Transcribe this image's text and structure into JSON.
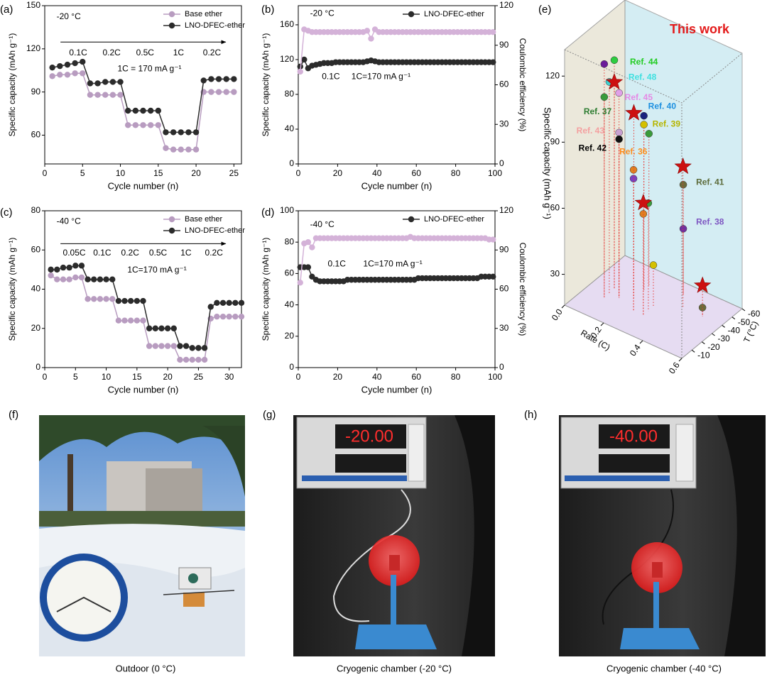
{
  "chart_data": [
    {
      "type": "line",
      "panel_label": "(a)",
      "x": [
        1,
        2,
        3,
        4,
        5,
        6,
        7,
        8,
        9,
        10,
        11,
        12,
        13,
        14,
        15,
        16,
        17,
        18,
        19,
        20,
        21,
        22,
        23,
        24,
        25
      ],
      "series": [
        {
          "name": "Base ether",
          "color": "#b89cc0",
          "values": [
            101,
            102,
            102,
            103,
            103,
            88,
            88,
            88,
            88,
            88,
            67,
            67,
            67,
            67,
            67,
            51,
            50,
            50,
            50,
            50,
            90,
            90,
            90,
            90,
            90
          ]
        },
        {
          "name": "LNO-DFEC-ether",
          "color": "#2b2b2b",
          "values": [
            107,
            108,
            109,
            110,
            111,
            96,
            96,
            97,
            97,
            97,
            77,
            77,
            77,
            77,
            77,
            62,
            62,
            62,
            62,
            62,
            98,
            99,
            99,
            99,
            99
          ]
        }
      ],
      "xlim": [
        0,
        26
      ],
      "xticks": [
        0,
        5,
        10,
        15,
        20,
        25
      ],
      "ylim": [
        40,
        150
      ],
      "yticks": [
        60,
        90,
        120,
        150
      ],
      "x_label": "Cycle number (n)",
      "y_label": "Specific capacity (mAh g⁻¹)",
      "legend": "top-right",
      "annotations": [
        "-20 °C",
        "1C = 170 mA g⁻¹"
      ],
      "rate_labels": [
        "0.1C",
        "0.2C",
        "0.5C",
        "1C",
        "0.2C"
      ]
    },
    {
      "type": "line",
      "panel_label": "(b)",
      "x": [
        1,
        3,
        5,
        7,
        9,
        11,
        13,
        15,
        17,
        19,
        21,
        23,
        25,
        27,
        29,
        31,
        33,
        35,
        37,
        39,
        41,
        43,
        45,
        47,
        49,
        51,
        53,
        55,
        57,
        59,
        61,
        63,
        65,
        67,
        69,
        71,
        73,
        75,
        77,
        79,
        81,
        83,
        85,
        87,
        89,
        91,
        93,
        95,
        97,
        99
      ],
      "series": [
        {
          "name": "LNO-DFEC-ether",
          "color": "#2b2b2b",
          "values": [
            112,
            120,
            110,
            113,
            114,
            115,
            116,
            116,
            116,
            117,
            117,
            117,
            117,
            117,
            117,
            117,
            117,
            118,
            119,
            118,
            117,
            117,
            117,
            117,
            117,
            117,
            117,
            117,
            117,
            117,
            117,
            117,
            117,
            117,
            117,
            117,
            117,
            117,
            117,
            117,
            117,
            117,
            117,
            117,
            117,
            117,
            117,
            117,
            117,
            117
          ]
        },
        {
          "color": "#d4b2d8",
          "axis": "y2",
          "values": [
            70,
            102,
            101,
            100,
            100,
            100,
            100,
            100,
            100,
            100,
            100,
            100,
            100,
            100,
            100,
            100,
            100,
            101,
            95,
            102,
            100,
            100,
            100,
            100,
            100,
            100,
            100,
            100,
            100,
            100,
            100,
            100,
            100,
            100,
            100,
            100,
            100,
            100,
            100,
            100,
            100,
            100,
            100,
            100,
            100,
            100,
            100,
            100,
            100,
            100
          ]
        }
      ],
      "xlim": [
        0,
        100
      ],
      "xticks": [
        0,
        20,
        40,
        60,
        80,
        100
      ],
      "ylim": [
        0,
        182
      ],
      "yticks": [
        0,
        40,
        80,
        120,
        160
      ],
      "y2lim": [
        0,
        120
      ],
      "y2ticks": [
        0,
        30,
        60,
        90,
        120
      ],
      "x_label": "Cycle number (n)",
      "y_label": "Specific capacity (mAh g⁻¹)",
      "y2_label": "Coulombic efficiency (%)",
      "legend": "top-right",
      "annotations": [
        "-20 °C",
        "0.1C",
        "1C=170 mA g⁻¹"
      ]
    },
    {
      "type": "line",
      "panel_label": "(c)",
      "x": [
        1,
        2,
        3,
        4,
        5,
        6,
        7,
        8,
        9,
        10,
        11,
        12,
        13,
        14,
        15,
        16,
        17,
        18,
        19,
        20,
        21,
        22,
        23,
        24,
        25,
        26,
        27,
        28,
        29,
        30,
        31,
        32
      ],
      "series": [
        {
          "name": "Base ether",
          "color": "#b89cc0",
          "values": [
            47,
            45,
            45,
            45,
            46,
            46,
            35,
            35,
            35,
            35,
            35,
            24,
            24,
            24,
            24,
            24,
            11,
            11,
            11,
            11,
            11,
            4,
            4,
            4,
            4,
            4,
            25,
            26,
            26,
            26,
            26,
            26
          ]
        },
        {
          "name": "LNO-DFEC-ether",
          "color": "#2b2b2b",
          "values": [
            50,
            50,
            51,
            51,
            52,
            52,
            45,
            45,
            45,
            45,
            45,
            34,
            34,
            34,
            34,
            34,
            20,
            20,
            20,
            20,
            20,
            11,
            11,
            10,
            10,
            10,
            31,
            33,
            33,
            33,
            33,
            33
          ]
        }
      ],
      "xlim": [
        0,
        32
      ],
      "xticks": [
        0,
        5,
        10,
        15,
        20,
        25,
        30
      ],
      "ylim": [
        0,
        80
      ],
      "yticks": [
        0,
        20,
        40,
        60,
        80
      ],
      "x_label": "Cycle number (n)",
      "y_label": "Specific capacity (mAh g⁻¹)",
      "legend": "top-right",
      "annotations": [
        "-40 °C",
        "1C=170 mA g⁻¹"
      ],
      "rate_labels": [
        "0.05C",
        "0.1C",
        "0.2C",
        "0.5C",
        "1C",
        "0.2C"
      ]
    },
    {
      "type": "line",
      "panel_label": "(d)",
      "x": [
        1,
        3,
        5,
        7,
        9,
        11,
        13,
        15,
        17,
        19,
        21,
        23,
        25,
        27,
        29,
        31,
        33,
        35,
        37,
        39,
        41,
        43,
        45,
        47,
        49,
        51,
        53,
        55,
        57,
        59,
        61,
        63,
        65,
        67,
        69,
        71,
        73,
        75,
        77,
        79,
        81,
        83,
        85,
        87,
        89,
        91,
        93,
        95,
        97,
        99
      ],
      "series": [
        {
          "name": "LNO-DFEC-ether",
          "color": "#2b2b2b",
          "values": [
            64,
            64,
            64,
            58,
            56,
            55,
            55,
            55,
            55,
            55,
            55,
            55,
            56,
            56,
            56,
            56,
            56,
            56,
            56,
            56,
            56,
            56,
            56,
            56,
            56,
            56,
            56,
            56,
            56,
            56,
            57,
            57,
            57,
            57,
            57,
            57,
            57,
            57,
            57,
            57,
            57,
            57,
            57,
            57,
            57,
            57,
            58,
            58,
            58,
            58
          ]
        },
        {
          "color": "#d4b2d8",
          "axis": "y2",
          "values": [
            65,
            95,
            96,
            92,
            99,
            99,
            99,
            99,
            99,
            99,
            99,
            99,
            99,
            99,
            99,
            99,
            99,
            99,
            99,
            99,
            99,
            99,
            99,
            99,
            99,
            99,
            99,
            99,
            100,
            99,
            99,
            99,
            99,
            99,
            99,
            99,
            99,
            99,
            99,
            99,
            99,
            99,
            99,
            99,
            99,
            99,
            99,
            99,
            98,
            98
          ]
        }
      ],
      "xlim": [
        0,
        100
      ],
      "xticks": [
        0,
        20,
        40,
        60,
        80,
        100
      ],
      "ylim": [
        0,
        100
      ],
      "yticks": [
        0,
        20,
        40,
        60,
        80,
        100
      ],
      "y2lim": [
        0,
        120
      ],
      "y2ticks": [
        0,
        30,
        60,
        90,
        120
      ],
      "x_label": "Cycle number (n)",
      "y_label": "Specific capacity (mAh g⁻¹)",
      "y2_label": "Coulombic efficiency (%)",
      "legend": "top-right",
      "annotations": [
        "-40 °C",
        "0.1C",
        "1C=170 mA g⁻¹"
      ]
    },
    {
      "type": "scatter3d",
      "panel_label": "(e)",
      "title": "This work",
      "x_label": "Rate (C)",
      "y_label": "T (°C)",
      "z_label": "Specific capacity (mAh g⁻¹)",
      "xlim": [
        0,
        0.6
      ],
      "xticks": [
        {
          "value": 0,
          "label": "0.0"
        },
        0.2,
        0.4,
        0.6
      ],
      "ylim": [
        0,
        -60
      ],
      "yticks": [
        -10,
        -20,
        -30,
        -40,
        -50,
        -60
      ],
      "zlim": [
        16,
        132
      ],
      "zticks": [
        30,
        60,
        90,
        120
      ],
      "this_work": {
        "color": "#cc1111",
        "rate": [
          0.1,
          0.2,
          0.4,
          0.3,
          0.5
        ],
        "T": [
          -30,
          -30,
          -40,
          -20,
          -40
        ],
        "capacity": [
          110,
          100,
          80,
          67,
          30
        ]
      },
      "refs": [
        {
          "color": "#6a1b9a",
          "rate": 0.1,
          "T": -20,
          "capacity": 122
        },
        {
          "label": "Ref. 44",
          "label_color": "#22cc22",
          "color": "#2ecc40",
          "rate": 0.1,
          "T": -30,
          "capacity": 120
        },
        {
          "label": "Ref. 48",
          "label_color": "#40e0e0",
          "color": "#40d0d0",
          "rate": 0.1,
          "T": -25,
          "capacity": 112
        },
        {
          "label": "Ref. 45",
          "label_color": "#e58ae5",
          "color": "#e0a0e8",
          "rate": 0.15,
          "T": -25,
          "capacity": 109
        },
        {
          "label": "Ref. 37",
          "label_color": "#2e7d32",
          "color": "#3a9a3a",
          "rate": 0.1,
          "T": -20,
          "capacity": 107
        },
        {
          "label": "Ref. 40",
          "label_color": "#1e90e0",
          "color": "#1a237e",
          "rate": 0.2,
          "T": -40,
          "capacity": 95
        },
        {
          "label": "Ref. 39",
          "label_color": "#b5b500",
          "color": "#d4c000",
          "rate": 0.2,
          "T": -40,
          "capacity": 91
        },
        {
          "label": "Ref. 43",
          "label_color": "#f4a0a0",
          "color": "#c8a0d0",
          "rate": 0.15,
          "T": -25,
          "capacity": 91
        },
        {
          "label": "Ref. 42",
          "label_color": "#000000",
          "color": "#111111",
          "rate": 0.15,
          "T": -25,
          "capacity": 88
        },
        {
          "color": "#3a9a3a",
          "rate": 0.2,
          "T": -45,
          "capacity": 85
        },
        {
          "label": "Ref. 36",
          "label_color": "#ff8c1a",
          "color": "#e08020",
          "rate": 0.25,
          "T": -20,
          "capacity": 80
        },
        {
          "color": "#7b3fc0",
          "rate": 0.25,
          "T": -20,
          "capacity": 76
        },
        {
          "label": "Ref. 41",
          "label_color": "#5c6b3a",
          "color": "#6b6b3a",
          "rate": 0.35,
          "T": -50,
          "capacity": 66
        },
        {
          "label": "Ref. 38",
          "label_color": "#7e57c2",
          "color": "#7030a0",
          "rate": 0.35,
          "T": -50,
          "capacity": 46
        },
        {
          "color": "#e08020",
          "rate": 0.3,
          "T": -20,
          "capacity": 62
        },
        {
          "color": "#3a9a3a",
          "rate": 0.3,
          "T": -25,
          "capacity": 65
        },
        {
          "color": "#d4c000",
          "rate": 0.3,
          "T": -30,
          "capacity": 35
        },
        {
          "color": "#6b6b3a",
          "rate": 0.5,
          "T": -40,
          "capacity": 20
        }
      ]
    }
  ],
  "photos": [
    {
      "panel_label": "(f)",
      "caption": "Outdoor (0 °C)"
    },
    {
      "panel_label": "(g)",
      "caption": "Cryogenic chamber (-20 °C)",
      "display": "-20.00"
    },
    {
      "panel_label": "(h)",
      "caption": "Cryogenic chamber (-40 °C)",
      "display": "-40.00"
    }
  ]
}
